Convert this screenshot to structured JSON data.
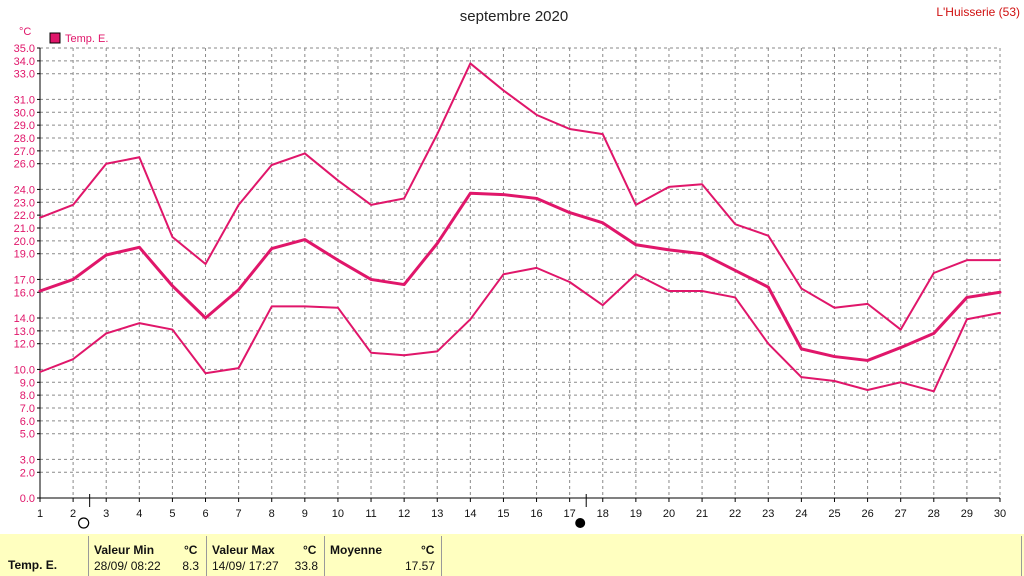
{
  "header": {
    "title": "septembre 2020",
    "station": "L'Huisserie (53)",
    "unit": "°C",
    "legend_label": "Temp. E."
  },
  "colors": {
    "series": "#e0166a",
    "grid": "#8a8a8a",
    "stats_background": "#ffffc0"
  },
  "chart_data": {
    "type": "line",
    "title": "septembre 2020",
    "ylabel": "°C",
    "xlabel": "",
    "x": [
      1,
      2,
      3,
      4,
      5,
      6,
      7,
      8,
      9,
      10,
      11,
      12,
      13,
      14,
      15,
      16,
      17,
      18,
      19,
      20,
      21,
      22,
      23,
      24,
      25,
      26,
      27,
      28,
      29,
      30
    ],
    "ylim": [
      0,
      35
    ],
    "yticks": [
      0.0,
      2.0,
      3.0,
      5.0,
      6.0,
      7.0,
      8.0,
      9.0,
      10.0,
      12.0,
      13.0,
      14.0,
      16.0,
      17.0,
      19.0,
      20.0,
      21.0,
      22.0,
      23.0,
      24.0,
      26.0,
      27.0,
      28.0,
      29.0,
      30.0,
      31.0,
      33.0,
      34.0,
      35.0
    ],
    "series": [
      {
        "name": "max",
        "width": 2,
        "values": [
          21.8,
          22.8,
          26.0,
          26.5,
          20.3,
          18.2,
          22.8,
          25.9,
          26.8,
          24.7,
          22.8,
          23.3,
          28.3,
          33.8,
          31.7,
          29.8,
          28.7,
          28.3,
          22.8,
          24.2,
          24.4,
          21.3,
          20.4,
          16.3,
          14.8,
          15.1,
          13.1,
          17.5,
          18.5,
          18.5
        ]
      },
      {
        "name": "Temp. E.",
        "width": 3,
        "values": [
          16.1,
          17.0,
          18.9,
          19.5,
          16.5,
          14.0,
          16.2,
          19.4,
          20.1,
          18.5,
          17.0,
          16.6,
          19.8,
          23.7,
          23.6,
          23.3,
          22.2,
          21.4,
          19.7,
          19.3,
          19.0,
          17.7,
          16.4,
          11.6,
          11.0,
          10.7,
          11.7,
          12.8,
          15.6,
          16.0
        ]
      },
      {
        "name": "min",
        "width": 2,
        "values": [
          9.8,
          10.8,
          12.8,
          13.6,
          13.1,
          9.7,
          10.1,
          14.9,
          14.9,
          14.8,
          11.3,
          11.1,
          11.4,
          13.9,
          17.4,
          17.9,
          16.8,
          15.0,
          17.4,
          16.1,
          16.1,
          15.6,
          12.0,
          9.4,
          9.1,
          8.4,
          9.0,
          8.3,
          13.9,
          14.4
        ]
      }
    ],
    "moon_phases": [
      {
        "day": 2,
        "phase": "full"
      },
      {
        "day": 17,
        "phase": "new"
      }
    ],
    "grid": true
  },
  "stats": {
    "row_label": "Temp. E.",
    "min": {
      "header": "Valeur Min",
      "unit": "°C",
      "when": "28/09/  08:22",
      "value": "8.3"
    },
    "max": {
      "header": "Valeur Max",
      "unit": "°C",
      "when": "14/09/  17:27",
      "value": "33.8"
    },
    "avg": {
      "header": "Moyenne",
      "unit": "°C",
      "value": "17.57"
    }
  }
}
